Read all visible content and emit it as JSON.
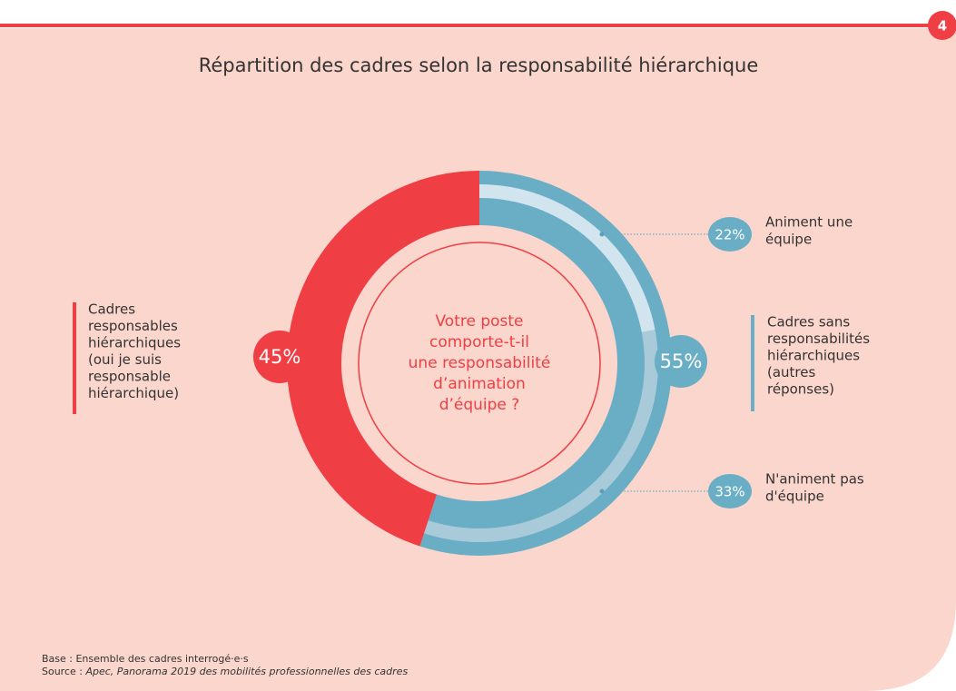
{
  "page_number": "4",
  "chart_data": {
    "type": "donut",
    "title": "Répartition des cadres selon la responsabilité hiérarchique",
    "center_text": [
      "Votre poste",
      "comporte-t-il",
      "une responsabilité",
      "d’animation",
      "d’équipe ?"
    ],
    "series": [
      {
        "name": "main",
        "categories": [
          [
            "Cadres sans",
            "responsabilités",
            "hiérarchiques",
            "(autres",
            "réponses)"
          ],
          [
            "Cadres",
            "responsables",
            "hiérarchiques",
            "(oui je suis",
            "responsable",
            "hiérarchique)"
          ]
        ],
        "values": [
          55,
          45
        ],
        "value_labels": [
          "55%",
          "45%"
        ],
        "colors": [
          "#6aaec6",
          "#ef3e44"
        ]
      },
      {
        "name": "sub",
        "categories": [
          [
            "Animent une",
            "équipe"
          ],
          [
            "N'animent pas",
            "d'équipe"
          ]
        ],
        "values": [
          22,
          33
        ],
        "value_labels": [
          "22%",
          "33%"
        ],
        "colors": [
          "#d2e4ed",
          "#a9cbd9"
        ]
      }
    ],
    "notes": {
      "base": "Base : Ensemble des cadres interrogé·e·s",
      "source_prefix": "Source : ",
      "source": "Apec, Panorama 2019 des mobilités professionnelles des cadres"
    }
  }
}
